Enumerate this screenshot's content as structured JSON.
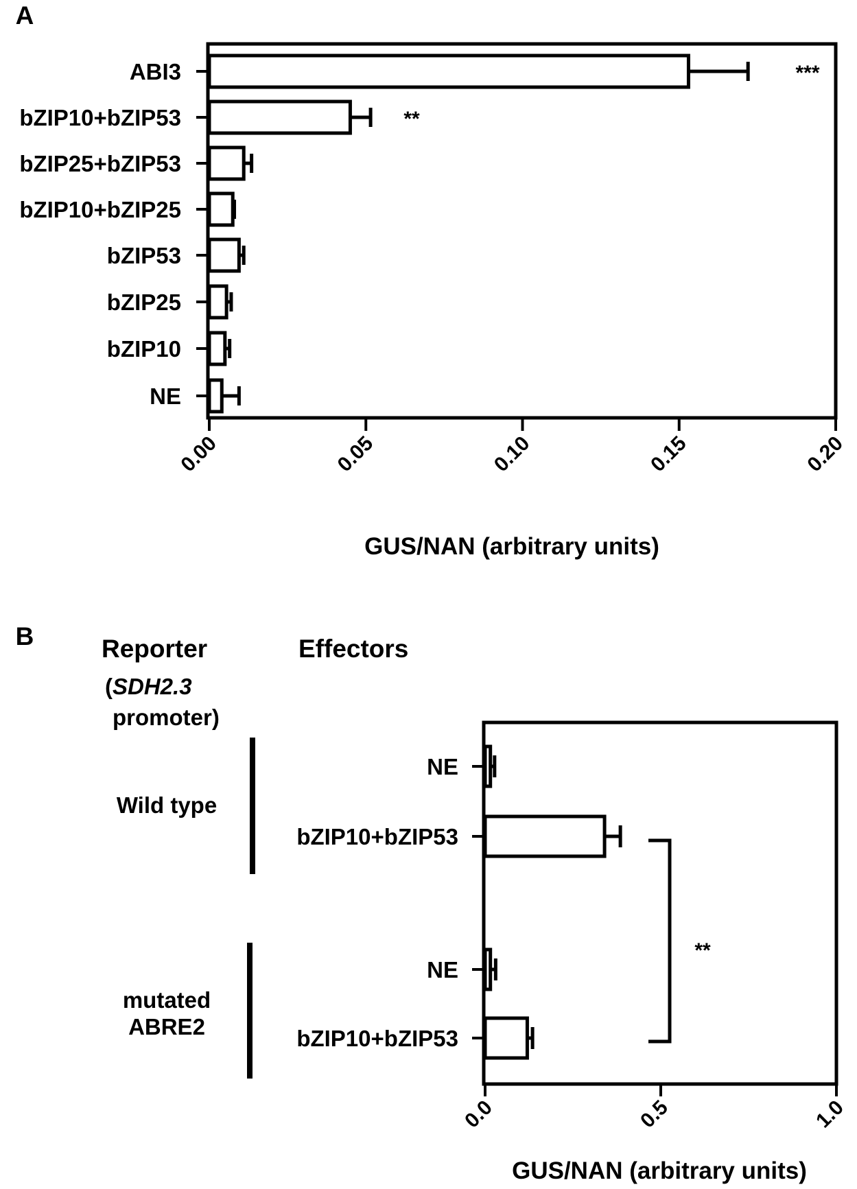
{
  "chart_data": [
    {
      "panel": "A",
      "type": "bar",
      "orientation": "horizontal",
      "categories": [
        "ABI3",
        "bZIP10+bZIP53",
        "bZIP25+bZIP53",
        "bZIP10+bZIP25",
        "bZIP53",
        "bZIP25",
        "bZIP10",
        "NE"
      ],
      "values": [
        0.153,
        0.045,
        0.011,
        0.0075,
        0.0095,
        0.0055,
        0.005,
        0.004
      ],
      "errors": [
        0.019,
        0.0065,
        0.0025,
        0.0005,
        0.0015,
        0.0015,
        0.0015,
        0.0055
      ],
      "significance": [
        "***",
        "**",
        "",
        "",
        "",
        "",
        "",
        ""
      ],
      "xlabel": "GUS/NAN (arbitrary units)",
      "xlim": [
        0,
        0.2
      ],
      "xticks": [
        "0.00",
        "0.05",
        "0.10",
        "0.15",
        "0.20"
      ]
    },
    {
      "panel": "B",
      "type": "bar",
      "orientation": "horizontal",
      "header_reporter": "Reporter",
      "header_effectors": "Effectors",
      "reporter_open": "(",
      "reporter_italic": "SDH2.3",
      "reporter_line2": "promoter)",
      "groups": [
        {
          "name": "Wild type",
          "lines": [
            "Wild type"
          ]
        },
        {
          "name": "mutated ABRE2",
          "lines": [
            "mutated",
            "ABRE2"
          ]
        }
      ],
      "categories": [
        "NE",
        "bZIP10+bZIP53",
        "NE",
        "bZIP10+bZIP53"
      ],
      "values": [
        0.015,
        0.34,
        0.015,
        0.12
      ],
      "errors": [
        0.012,
        0.045,
        0.015,
        0.015
      ],
      "significance_label": "**",
      "xlabel": "GUS/NAN (arbitrary units)",
      "xlim": [
        0,
        1.0
      ],
      "xticks": [
        "0.0",
        "0.5",
        "1.0"
      ]
    }
  ]
}
